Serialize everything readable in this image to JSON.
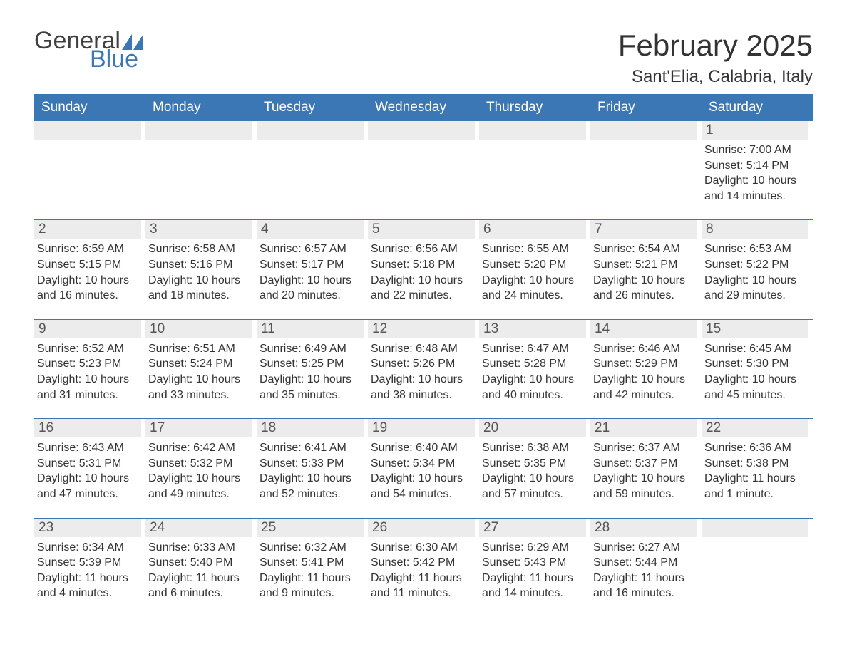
{
  "logo": {
    "general": "General",
    "blue": "Blue",
    "brand_color": "#3b77b5"
  },
  "header": {
    "month_title": "February 2025",
    "location": "Sant'Elia, Calabria, Italy"
  },
  "days_of_week": [
    "Sunday",
    "Monday",
    "Tuesday",
    "Wednesday",
    "Thursday",
    "Friday",
    "Saturday"
  ],
  "style": {
    "header_bg": "#3b77b5",
    "header_text": "#ffffff",
    "daynum_bg": "#ececec",
    "row_border": "#3b77b5",
    "body_text": "#333333",
    "title_fontsize_pt": 32,
    "location_fontsize_pt": 18,
    "dow_fontsize_pt": 14,
    "detail_fontsize_pt": 12
  },
  "weeks": [
    [
      {
        "empty": true
      },
      {
        "empty": true
      },
      {
        "empty": true
      },
      {
        "empty": true
      },
      {
        "empty": true
      },
      {
        "empty": true
      },
      {
        "n": "1",
        "sunrise": "Sunrise: 7:00 AM",
        "sunset": "Sunset: 5:14 PM",
        "dl1": "Daylight: 10 hours",
        "dl2": "and 14 minutes."
      }
    ],
    [
      {
        "n": "2",
        "sunrise": "Sunrise: 6:59 AM",
        "sunset": "Sunset: 5:15 PM",
        "dl1": "Daylight: 10 hours",
        "dl2": "and 16 minutes."
      },
      {
        "n": "3",
        "sunrise": "Sunrise: 6:58 AM",
        "sunset": "Sunset: 5:16 PM",
        "dl1": "Daylight: 10 hours",
        "dl2": "and 18 minutes."
      },
      {
        "n": "4",
        "sunrise": "Sunrise: 6:57 AM",
        "sunset": "Sunset: 5:17 PM",
        "dl1": "Daylight: 10 hours",
        "dl2": "and 20 minutes."
      },
      {
        "n": "5",
        "sunrise": "Sunrise: 6:56 AM",
        "sunset": "Sunset: 5:18 PM",
        "dl1": "Daylight: 10 hours",
        "dl2": "and 22 minutes."
      },
      {
        "n": "6",
        "sunrise": "Sunrise: 6:55 AM",
        "sunset": "Sunset: 5:20 PM",
        "dl1": "Daylight: 10 hours",
        "dl2": "and 24 minutes."
      },
      {
        "n": "7",
        "sunrise": "Sunrise: 6:54 AM",
        "sunset": "Sunset: 5:21 PM",
        "dl1": "Daylight: 10 hours",
        "dl2": "and 26 minutes."
      },
      {
        "n": "8",
        "sunrise": "Sunrise: 6:53 AM",
        "sunset": "Sunset: 5:22 PM",
        "dl1": "Daylight: 10 hours",
        "dl2": "and 29 minutes."
      }
    ],
    [
      {
        "n": "9",
        "sunrise": "Sunrise: 6:52 AM",
        "sunset": "Sunset: 5:23 PM",
        "dl1": "Daylight: 10 hours",
        "dl2": "and 31 minutes."
      },
      {
        "n": "10",
        "sunrise": "Sunrise: 6:51 AM",
        "sunset": "Sunset: 5:24 PM",
        "dl1": "Daylight: 10 hours",
        "dl2": "and 33 minutes."
      },
      {
        "n": "11",
        "sunrise": "Sunrise: 6:49 AM",
        "sunset": "Sunset: 5:25 PM",
        "dl1": "Daylight: 10 hours",
        "dl2": "and 35 minutes."
      },
      {
        "n": "12",
        "sunrise": "Sunrise: 6:48 AM",
        "sunset": "Sunset: 5:26 PM",
        "dl1": "Daylight: 10 hours",
        "dl2": "and 38 minutes."
      },
      {
        "n": "13",
        "sunrise": "Sunrise: 6:47 AM",
        "sunset": "Sunset: 5:28 PM",
        "dl1": "Daylight: 10 hours",
        "dl2": "and 40 minutes."
      },
      {
        "n": "14",
        "sunrise": "Sunrise: 6:46 AM",
        "sunset": "Sunset: 5:29 PM",
        "dl1": "Daylight: 10 hours",
        "dl2": "and 42 minutes."
      },
      {
        "n": "15",
        "sunrise": "Sunrise: 6:45 AM",
        "sunset": "Sunset: 5:30 PM",
        "dl1": "Daylight: 10 hours",
        "dl2": "and 45 minutes."
      }
    ],
    [
      {
        "n": "16",
        "sunrise": "Sunrise: 6:43 AM",
        "sunset": "Sunset: 5:31 PM",
        "dl1": "Daylight: 10 hours",
        "dl2": "and 47 minutes."
      },
      {
        "n": "17",
        "sunrise": "Sunrise: 6:42 AM",
        "sunset": "Sunset: 5:32 PM",
        "dl1": "Daylight: 10 hours",
        "dl2": "and 49 minutes."
      },
      {
        "n": "18",
        "sunrise": "Sunrise: 6:41 AM",
        "sunset": "Sunset: 5:33 PM",
        "dl1": "Daylight: 10 hours",
        "dl2": "and 52 minutes."
      },
      {
        "n": "19",
        "sunrise": "Sunrise: 6:40 AM",
        "sunset": "Sunset: 5:34 PM",
        "dl1": "Daylight: 10 hours",
        "dl2": "and 54 minutes."
      },
      {
        "n": "20",
        "sunrise": "Sunrise: 6:38 AM",
        "sunset": "Sunset: 5:35 PM",
        "dl1": "Daylight: 10 hours",
        "dl2": "and 57 minutes."
      },
      {
        "n": "21",
        "sunrise": "Sunrise: 6:37 AM",
        "sunset": "Sunset: 5:37 PM",
        "dl1": "Daylight: 10 hours",
        "dl2": "and 59 minutes."
      },
      {
        "n": "22",
        "sunrise": "Sunrise: 6:36 AM",
        "sunset": "Sunset: 5:38 PM",
        "dl1": "Daylight: 11 hours",
        "dl2": "and 1 minute."
      }
    ],
    [
      {
        "n": "23",
        "sunrise": "Sunrise: 6:34 AM",
        "sunset": "Sunset: 5:39 PM",
        "dl1": "Daylight: 11 hours",
        "dl2": "and 4 minutes."
      },
      {
        "n": "24",
        "sunrise": "Sunrise: 6:33 AM",
        "sunset": "Sunset: 5:40 PM",
        "dl1": "Daylight: 11 hours",
        "dl2": "and 6 minutes."
      },
      {
        "n": "25",
        "sunrise": "Sunrise: 6:32 AM",
        "sunset": "Sunset: 5:41 PM",
        "dl1": "Daylight: 11 hours",
        "dl2": "and 9 minutes."
      },
      {
        "n": "26",
        "sunrise": "Sunrise: 6:30 AM",
        "sunset": "Sunset: 5:42 PM",
        "dl1": "Daylight: 11 hours",
        "dl2": "and 11 minutes."
      },
      {
        "n": "27",
        "sunrise": "Sunrise: 6:29 AM",
        "sunset": "Sunset: 5:43 PM",
        "dl1": "Daylight: 11 hours",
        "dl2": "and 14 minutes."
      },
      {
        "n": "28",
        "sunrise": "Sunrise: 6:27 AM",
        "sunset": "Sunset: 5:44 PM",
        "dl1": "Daylight: 11 hours",
        "dl2": "and 16 minutes."
      },
      {
        "empty": true
      }
    ]
  ]
}
